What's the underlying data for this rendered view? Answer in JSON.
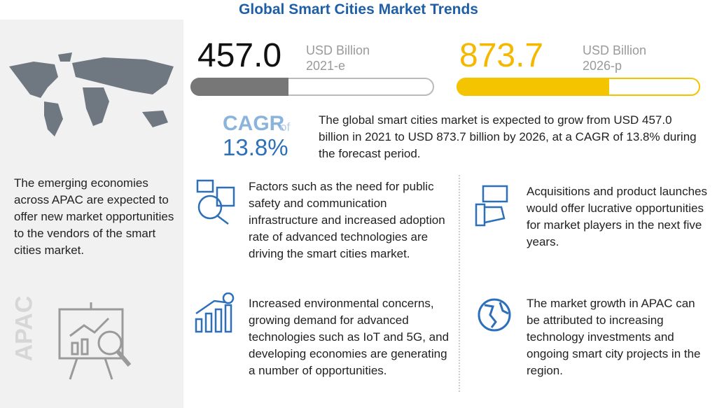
{
  "header": {
    "title": "Global Smart Cities Market Trends"
  },
  "stats": [
    {
      "value": "457.0",
      "unit": "USD Billion",
      "year": "2021-e"
    },
    {
      "value": "873.7",
      "unit": "USD Billion",
      "year": "2026-p"
    }
  ],
  "cagr": {
    "label": "CAGR",
    "of": "of",
    "value": "13.8%",
    "text": "The global smart cities market is expected to grow from USD 457.0 billion in 2021 to USD 873.7 billion by 2026, at a CAGR of 13.8% during the forecast period."
  },
  "sidebar": {
    "text": "The emerging economies across APAC are expected to offer new market opportunities to the vendors of the smart cities market.",
    "region": "APAC"
  },
  "points": [
    "Factors such as the need for public safety and communication infrastructure and increased adoption rate of advanced technologies are driving the smart cities market.",
    "Acquisitions and product launches would offer lucrative opportunities for market players in the next five years.",
    "Increased environmental concerns, growing demand for advanced technologies such as IoT and 5G, and developing economies are generating a number of opportunities.",
    "The market growth in APAC can be attributed to increasing technology investments and ongoing smart city projects in the region."
  ]
}
